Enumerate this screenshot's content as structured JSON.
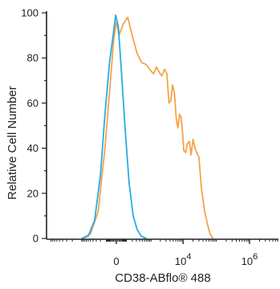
{
  "chart_data": {
    "type": "line",
    "title": "",
    "xlabel": "CD38-ABflo® 488",
    "ylabel": "Relative Cell Number",
    "x_scale": "biexponential",
    "x_ticks": [
      {
        "value": 0,
        "base": "0",
        "exp": ""
      },
      {
        "value": 10000,
        "base": "10",
        "exp": "4"
      },
      {
        "value": 1000000,
        "base": "10",
        "exp": "6"
      }
    ],
    "y_ticks": [
      0,
      20,
      40,
      60,
      80,
      100
    ],
    "ylim": [
      0,
      100
    ],
    "grid": false,
    "legend": "none",
    "series": [
      {
        "color": "#f5a24a",
        "points": [
          [
            -1000,
            0
          ],
          [
            -500,
            2
          ],
          [
            -250,
            12
          ],
          [
            -120,
            40
          ],
          [
            -50,
            70
          ],
          [
            -20,
            88
          ],
          [
            0,
            96
          ],
          [
            20,
            90
          ],
          [
            60,
            95
          ],
          [
            120,
            98
          ],
          [
            200,
            90
          ],
          [
            320,
            82
          ],
          [
            470,
            78
          ],
          [
            700,
            77
          ],
          [
            900,
            75
          ],
          [
            1200,
            73
          ],
          [
            1500,
            76
          ],
          [
            1800,
            74
          ],
          [
            2200,
            72
          ],
          [
            2700,
            75
          ],
          [
            3200,
            73
          ],
          [
            3700,
            60
          ],
          [
            4200,
            61
          ],
          [
            4800,
            68
          ],
          [
            5500,
            64
          ],
          [
            6200,
            53
          ],
          [
            7000,
            49
          ],
          [
            7800,
            55
          ],
          [
            8600,
            54
          ],
          [
            9500,
            48
          ],
          [
            10500,
            39
          ],
          [
            12000,
            38
          ],
          [
            13500,
            42
          ],
          [
            15500,
            43
          ],
          [
            17500,
            37
          ],
          [
            20000,
            44
          ],
          [
            23000,
            40
          ],
          [
            26000,
            38
          ],
          [
            30000,
            36
          ],
          [
            36000,
            22
          ],
          [
            45000,
            12
          ],
          [
            55000,
            6
          ],
          [
            65000,
            2
          ],
          [
            80000,
            0
          ]
        ]
      },
      {
        "color": "#29abe2",
        "points": [
          [
            -1000,
            0
          ],
          [
            -600,
            1
          ],
          [
            -350,
            8
          ],
          [
            -200,
            28
          ],
          [
            -120,
            55
          ],
          [
            -60,
            78
          ],
          [
            -25,
            90
          ],
          [
            -5,
            99
          ],
          [
            15,
            94
          ],
          [
            45,
            72
          ],
          [
            85,
            48
          ],
          [
            140,
            25
          ],
          [
            220,
            10
          ],
          [
            320,
            4
          ],
          [
            460,
            1
          ],
          [
            700,
            0
          ]
        ]
      }
    ]
  }
}
